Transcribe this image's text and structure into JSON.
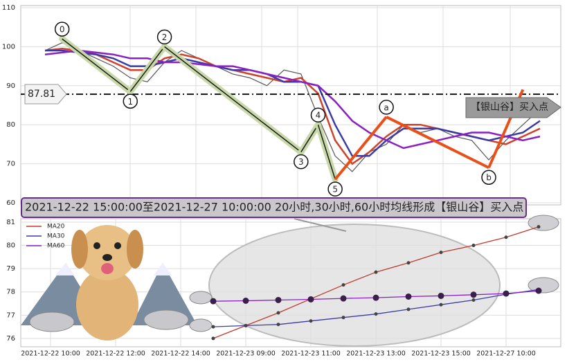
{
  "chart_data": [
    {
      "type": "line",
      "title": "2021-12-22 15:00:00至2021-12-27 10:00:00 20小时,30小时,60小时均线形成【银山谷】买入点",
      "annotation": "【银山谷】买入点",
      "ylim": [
        60,
        110
      ],
      "yticks": [
        60,
        70,
        80,
        90,
        100,
        110
      ],
      "grid": true,
      "hline": 87.81,
      "series": [
        {
          "color": "#555555",
          "values": [
            99,
            101,
            99,
            97,
            95,
            92,
            91,
            96,
            99,
            97,
            95,
            93,
            92,
            90,
            94,
            93,
            82,
            72,
            68,
            73,
            75,
            80,
            78,
            79,
            77,
            76,
            71,
            76,
            80,
            84
          ]
        },
        {
          "color": "#d0402a",
          "values": [
            99,
            99.5,
            99,
            98,
            96,
            94,
            94,
            97,
            98,
            97,
            95,
            94,
            93,
            92,
            91,
            92,
            88,
            76,
            70,
            73,
            77,
            80,
            80,
            79,
            78,
            77,
            76,
            75,
            77,
            79
          ]
        },
        {
          "color": "#3a3aa8",
          "values": [
            99,
            99,
            98.5,
            98,
            97,
            95,
            95,
            96,
            97,
            96,
            95,
            94,
            94,
            93,
            91,
            91,
            90,
            80,
            72,
            72,
            76,
            79,
            79,
            79,
            78,
            77,
            76,
            77,
            78,
            81
          ]
        },
        {
          "color": "#8a1fc2",
          "values": [
            98,
            98.5,
            99,
            98.5,
            98,
            97,
            97,
            96,
            96,
            95.5,
            95,
            95,
            94,
            93,
            92,
            91,
            90,
            86,
            81,
            78,
            76,
            74,
            75,
            76,
            77,
            78,
            78,
            77,
            76,
            77
          ]
        }
      ],
      "zigzag": [
        {
          "color": "#1a1a1a",
          "values": [
            null,
            102,
            null,
            null,
            null,
            88.5,
            null,
            100,
            null,
            null,
            null,
            null,
            null,
            null,
            null,
            73,
            80,
            66,
            null,
            null,
            null,
            null,
            null,
            null,
            null,
            null,
            null,
            null,
            null,
            null
          ],
          "labels": [
            null,
            "0",
            null,
            null,
            null,
            "1",
            null,
            "2",
            null,
            null,
            null,
            null,
            null,
            null,
            null,
            "3",
            "4",
            "5",
            null,
            null,
            null,
            null,
            null,
            null,
            null,
            null,
            null,
            null,
            null,
            null
          ]
        },
        {
          "color": "#e8501a",
          "values": [
            null,
            null,
            null,
            null,
            null,
            null,
            null,
            null,
            null,
            null,
            null,
            null,
            null,
            null,
            null,
            null,
            null,
            66,
            null,
            null,
            82,
            null,
            null,
            null,
            null,
            null,
            69,
            null,
            89,
            null
          ],
          "labels": [
            null,
            null,
            null,
            null,
            null,
            null,
            null,
            null,
            null,
            null,
            null,
            null,
            null,
            null,
            null,
            null,
            null,
            null,
            null,
            null,
            "a",
            null,
            null,
            null,
            null,
            null,
            "b",
            null,
            null,
            null
          ]
        }
      ]
    },
    {
      "type": "line",
      "categories": [
        "2021-12-22 10:00",
        null,
        "2021-12-22 12:00",
        null,
        "2021-12-22 14:00",
        null,
        "2021-12-23 09:00",
        null,
        "2021-12-23 11:00",
        null,
        "2021-12-23 13:00",
        null,
        "2021-12-23 15:00",
        null,
        "2021-12-27 10:00",
        null
      ],
      "ylim": [
        75.7,
        81.1
      ],
      "yticks": [
        76,
        77,
        78,
        79,
        80,
        81
      ],
      "grid": true,
      "legend": "upper left",
      "series": [
        {
          "name": "MA20",
          "color": "#c0392b",
          "values": [
            null,
            null,
            null,
            null,
            null,
            76.0,
            76.55,
            77.1,
            77.7,
            78.3,
            78.85,
            79.25,
            79.7,
            80.0,
            80.35,
            80.8
          ]
        },
        {
          "name": "MA30",
          "color": "#3a3aa8",
          "values": [
            null,
            null,
            null,
            null,
            null,
            76.5,
            76.55,
            76.6,
            76.75,
            76.9,
            77.05,
            77.25,
            77.45,
            77.65,
            77.9,
            78.1
          ]
        },
        {
          "name": "MA60",
          "color": "#8a1fc2",
          "values": [
            null,
            null,
            null,
            null,
            null,
            77.6,
            77.62,
            77.65,
            77.68,
            77.72,
            77.75,
            77.8,
            77.83,
            77.88,
            77.93,
            78.05
          ]
        }
      ]
    }
  ]
}
